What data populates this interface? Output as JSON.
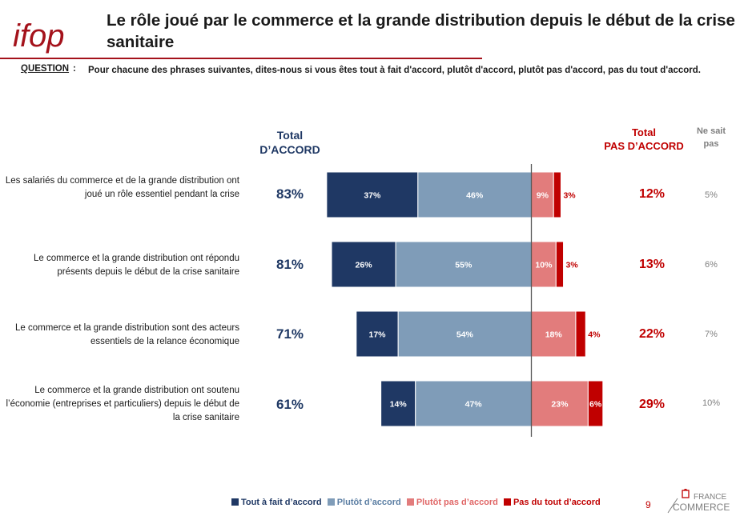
{
  "logo_text": "ifop",
  "title": "Le rôle joué par le commerce et la grande distribution depuis le début de la crise sanitaire",
  "question_label": "QUESTION",
  "question_colon": ":",
  "question_text": "Pour chacune des phrases suivantes, dites-nous si vous êtes tout à fait d'accord, plutôt d'accord, plutôt pas d'accord, pas du tout d'accord.",
  "headers": {
    "total_accord_line1": "Total",
    "total_accord_line2": "D’ACCORD",
    "total_pas_line1": "Total",
    "total_pas_line2": "PAS D’ACCORD",
    "ne_sait_line1": "Ne sait",
    "ne_sait_line2": "pas"
  },
  "colors": {
    "tout_a_fait": "#1f3864",
    "plutot": "#7f9cb8",
    "plutot_pas": "#e27c7c",
    "pas_du_tout": "#c00000",
    "total_accord_text": "#1f3864",
    "total_pas_text": "#c00000"
  },
  "chart_data": {
    "type": "bar",
    "orientation": "horizontal",
    "stacked": "diverging",
    "categories": [
      "Les salariés du commerce et de la grande distribution ont joué un rôle essentiel pendant la crise",
      "Le commerce et la grande distribution ont répondu présents depuis le début de la crise sanitaire",
      "Le commerce et la grande distribution sont des acteurs essentiels de la relance économique",
      "Le commerce et la grande distribution ont soutenu l’économie (entreprises et particuliers) depuis le début de la crise sanitaire"
    ],
    "series": [
      {
        "name": "Tout à fait d’accord",
        "values": [
          37,
          26,
          17,
          14
        ],
        "labels": [
          "37%",
          "26%",
          "17%",
          "14%"
        ]
      },
      {
        "name": "Plutôt d’accord",
        "values": [
          46,
          55,
          54,
          47
        ],
        "labels": [
          "46%",
          "55%",
          "54%",
          "47%"
        ]
      },
      {
        "name": "Plutôt pas d’accord",
        "values": [
          9,
          10,
          18,
          23
        ],
        "labels": [
          "9%",
          "10%",
          "18%",
          "23%"
        ]
      },
      {
        "name": "Pas du tout d’accord",
        "values": [
          3,
          3,
          4,
          6
        ],
        "labels": [
          "3%",
          "3%",
          "4%",
          "6%"
        ]
      }
    ],
    "total_accord": [
      "83%",
      "81%",
      "71%",
      "61%"
    ],
    "total_pas_accord": [
      "12%",
      "13%",
      "22%",
      "29%"
    ],
    "ne_sait_pas": [
      "5%",
      "6%",
      "7%",
      "10%"
    ],
    "legend_position": "bottom"
  },
  "page_number": "9",
  "brand": {
    "line1": "FRANCE",
    "line2": "COMMERCE"
  }
}
